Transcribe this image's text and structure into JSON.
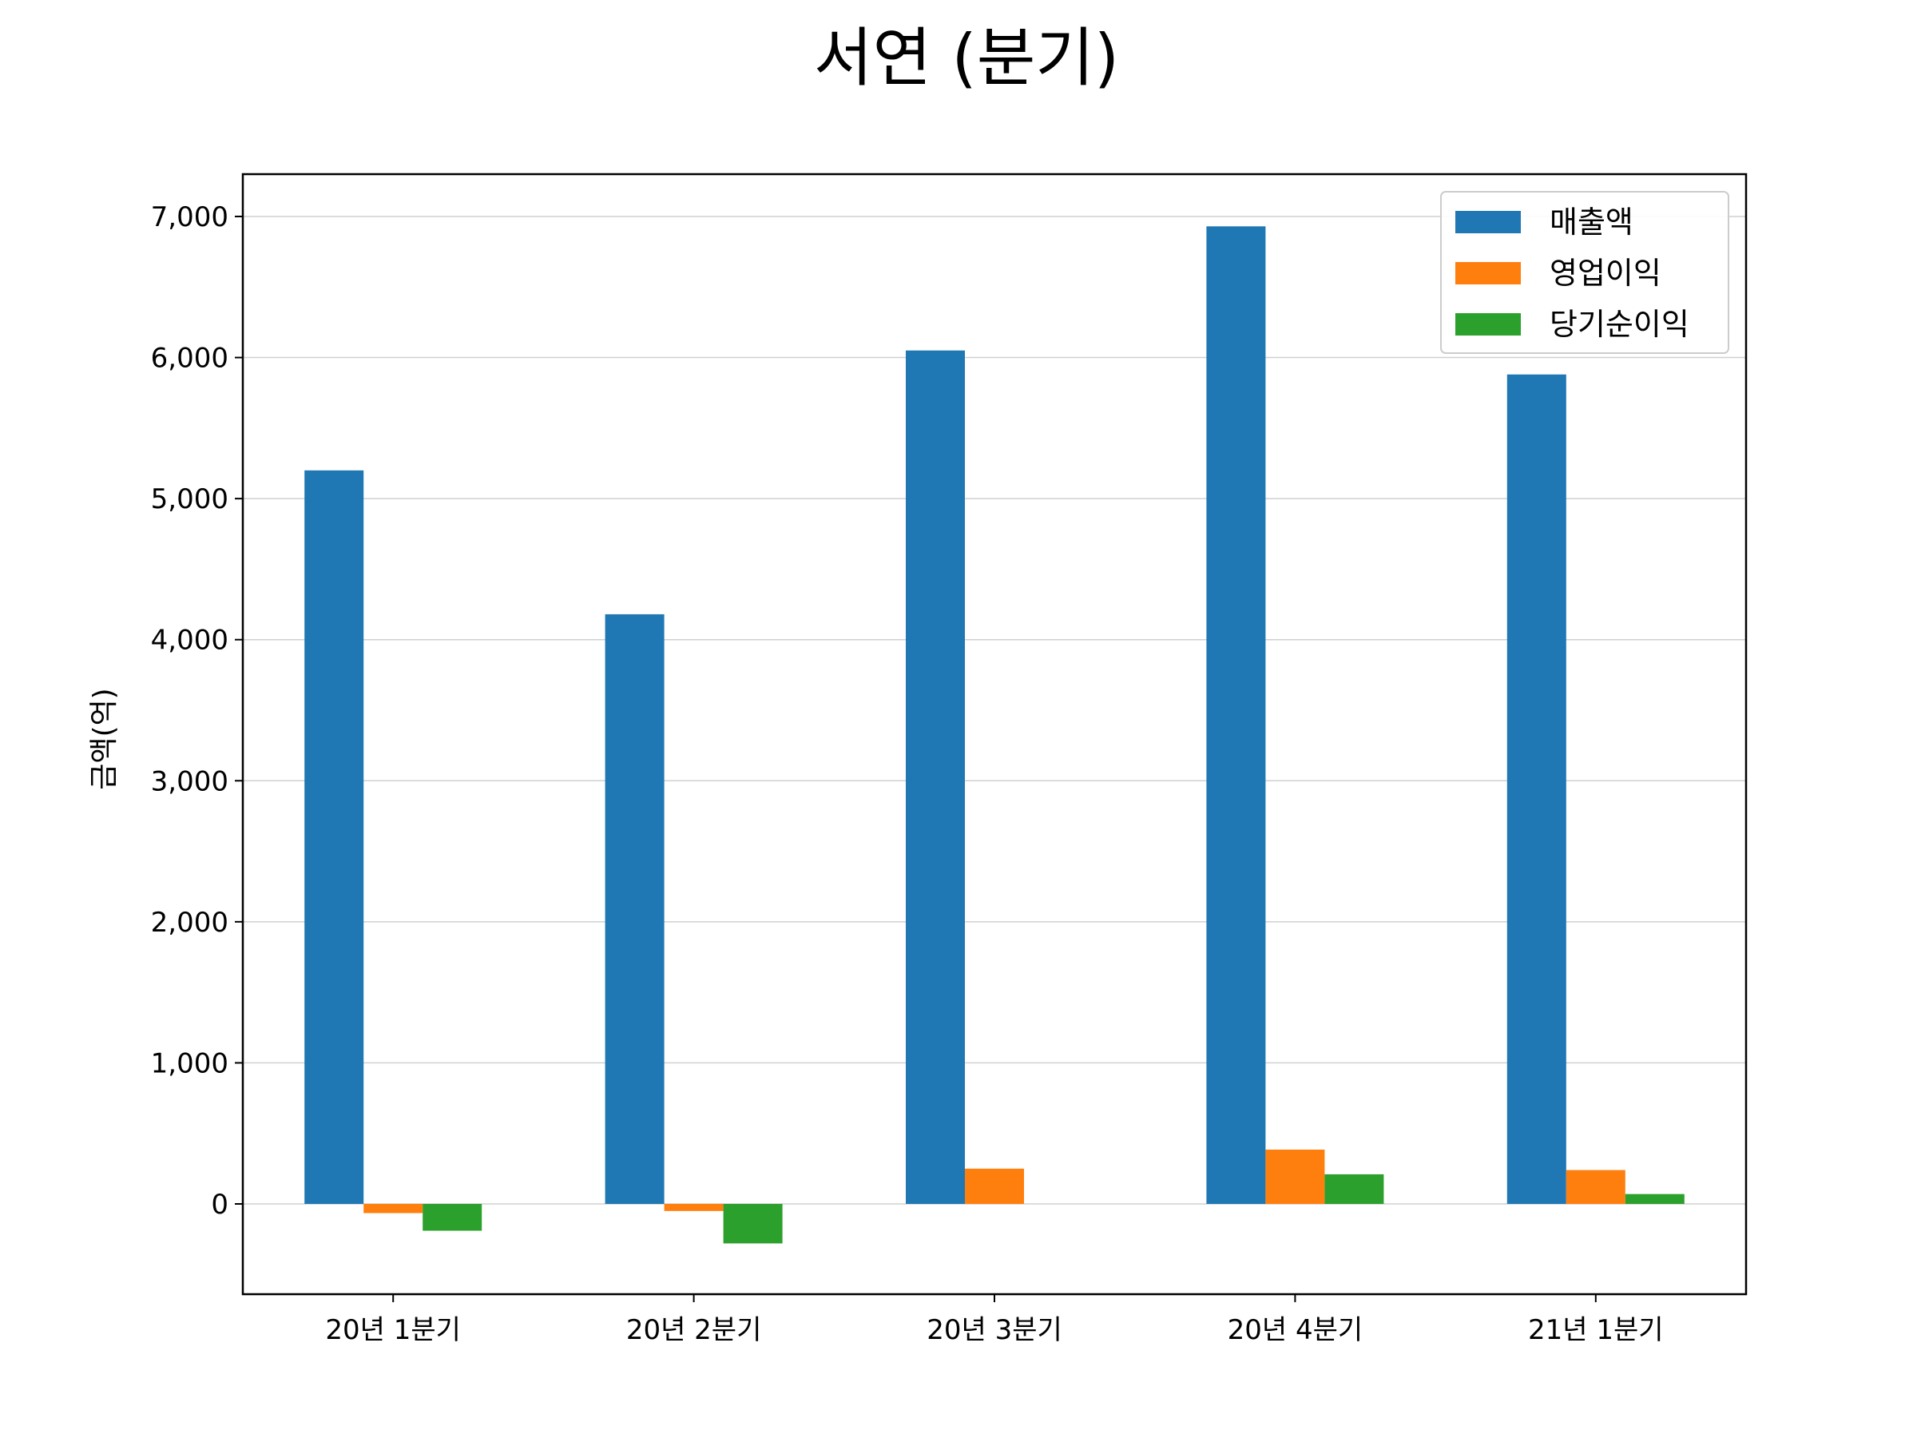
{
  "chart_data": {
    "type": "bar",
    "title": "서연 (분기)",
    "xlabel": "",
    "ylabel": "금액(억)",
    "categories": [
      "20년 1분기",
      "20년 2분기",
      "20년 3분기",
      "20년 4분기",
      "21년 1분기"
    ],
    "series": [
      {
        "name": "매출액",
        "color": "#1f77b4",
        "values": [
          5200,
          4180,
          6050,
          6930,
          5880
        ]
      },
      {
        "name": "영업이익",
        "color": "#ff7f0e",
        "values": [
          -65,
          -50,
          250,
          385,
          240
        ]
      },
      {
        "name": "당기순이익",
        "color": "#2ca02c",
        "values": [
          -190,
          -280,
          0,
          210,
          70
        ]
      }
    ],
    "ylim": [
      -640,
      7300
    ],
    "yticks": [
      0,
      1000,
      2000,
      3000,
      4000,
      5000,
      6000,
      7000
    ],
    "ytick_labels": [
      "0",
      "1,000",
      "2,000",
      "3,000",
      "4,000",
      "5,000",
      "6,000",
      "7,000"
    ],
    "grid": "y",
    "legend_position": "top-right"
  }
}
